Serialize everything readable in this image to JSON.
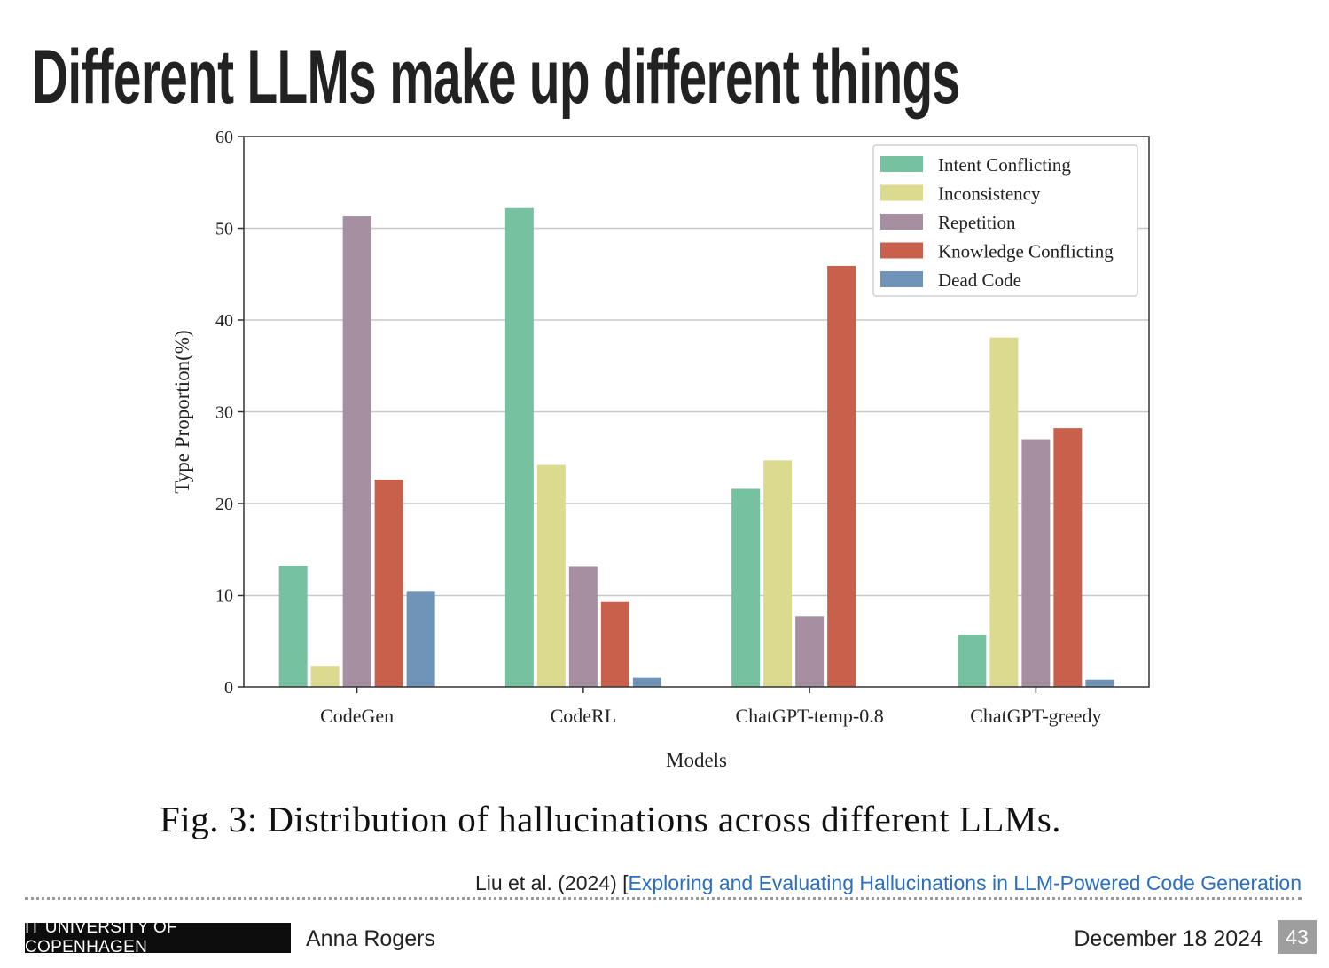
{
  "slide": {
    "title": "Different LLMs make up different things",
    "caption": "Fig. 3: Distribution of hallucinations across different LLMs.",
    "citation_prefix": "Liu et al. (2024) [",
    "citation_link": "Exploring and Evaluating Hallucinations in LLM-Powered Code Generation"
  },
  "footer": {
    "institution": "IT UNIVERSITY OF COPENHAGEN",
    "author": "Anna Rogers",
    "date": "December 18 2024",
    "page": "43"
  },
  "chart_data": {
    "type": "bar",
    "title": "",
    "xlabel": "Models",
    "ylabel": "Type Proportion(%)",
    "ylim": [
      0,
      60
    ],
    "yticks": [
      0,
      10,
      20,
      30,
      40,
      50,
      60
    ],
    "grid": "horizontal",
    "legend_position": "top-right",
    "categories": [
      "CodeGen",
      "CodeRL",
      "ChatGPT-temp-0.8",
      "ChatGPT-greedy"
    ],
    "series": [
      {
        "name": "Intent Conflicting",
        "color": "#76c2a0",
        "values": [
          13.2,
          52.2,
          21.6,
          5.7
        ]
      },
      {
        "name": "Inconsistency",
        "color": "#dbda8e",
        "values": [
          2.3,
          24.2,
          24.7,
          38.1
        ]
      },
      {
        "name": "Repetition",
        "color": "#a78fa2",
        "values": [
          51.3,
          13.1,
          7.7,
          27.0
        ]
      },
      {
        "name": "Knowledge Conflicting",
        "color": "#c9604b",
        "values": [
          22.6,
          9.3,
          45.9,
          28.2
        ]
      },
      {
        "name": "Dead Code",
        "color": "#6f94b7",
        "values": [
          10.4,
          1.0,
          0.0,
          0.8
        ]
      }
    ]
  }
}
